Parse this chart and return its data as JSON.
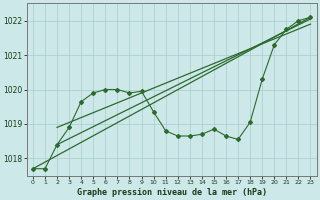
{
  "xlabel": "Graphe pression niveau de la mer (hPa)",
  "bg_color": "#cce8e8",
  "line_color": "#2d6a2d",
  "ylim": [
    1017.5,
    1022.5
  ],
  "xlim": [
    -0.5,
    23.5
  ],
  "yticks": [
    1018,
    1019,
    1020,
    1021,
    1022
  ],
  "xticks": [
    0,
    1,
    2,
    3,
    4,
    5,
    6,
    7,
    8,
    9,
    10,
    11,
    12,
    13,
    14,
    15,
    16,
    17,
    18,
    19,
    20,
    21,
    22,
    23
  ],
  "series_main": [
    1017.7,
    1017.7,
    1018.4,
    1018.9,
    1019.65,
    1019.9,
    1020.0,
    1020.0,
    1019.9,
    1019.95,
    1019.35,
    1018.8,
    1018.65,
    1018.65,
    1018.7,
    1018.85,
    1018.65,
    1018.55,
    1019.05,
    1020.3,
    1021.3,
    1021.75,
    1022.0,
    1022.1
  ],
  "trend_line1": [
    [
      0,
      1017.7
    ],
    [
      23,
      1022.1
    ]
  ],
  "trend_line2": [
    [
      2,
      1018.4
    ],
    [
      23,
      1022.05
    ]
  ],
  "trend_line3": [
    [
      2,
      1018.9
    ],
    [
      23,
      1021.9
    ]
  ]
}
